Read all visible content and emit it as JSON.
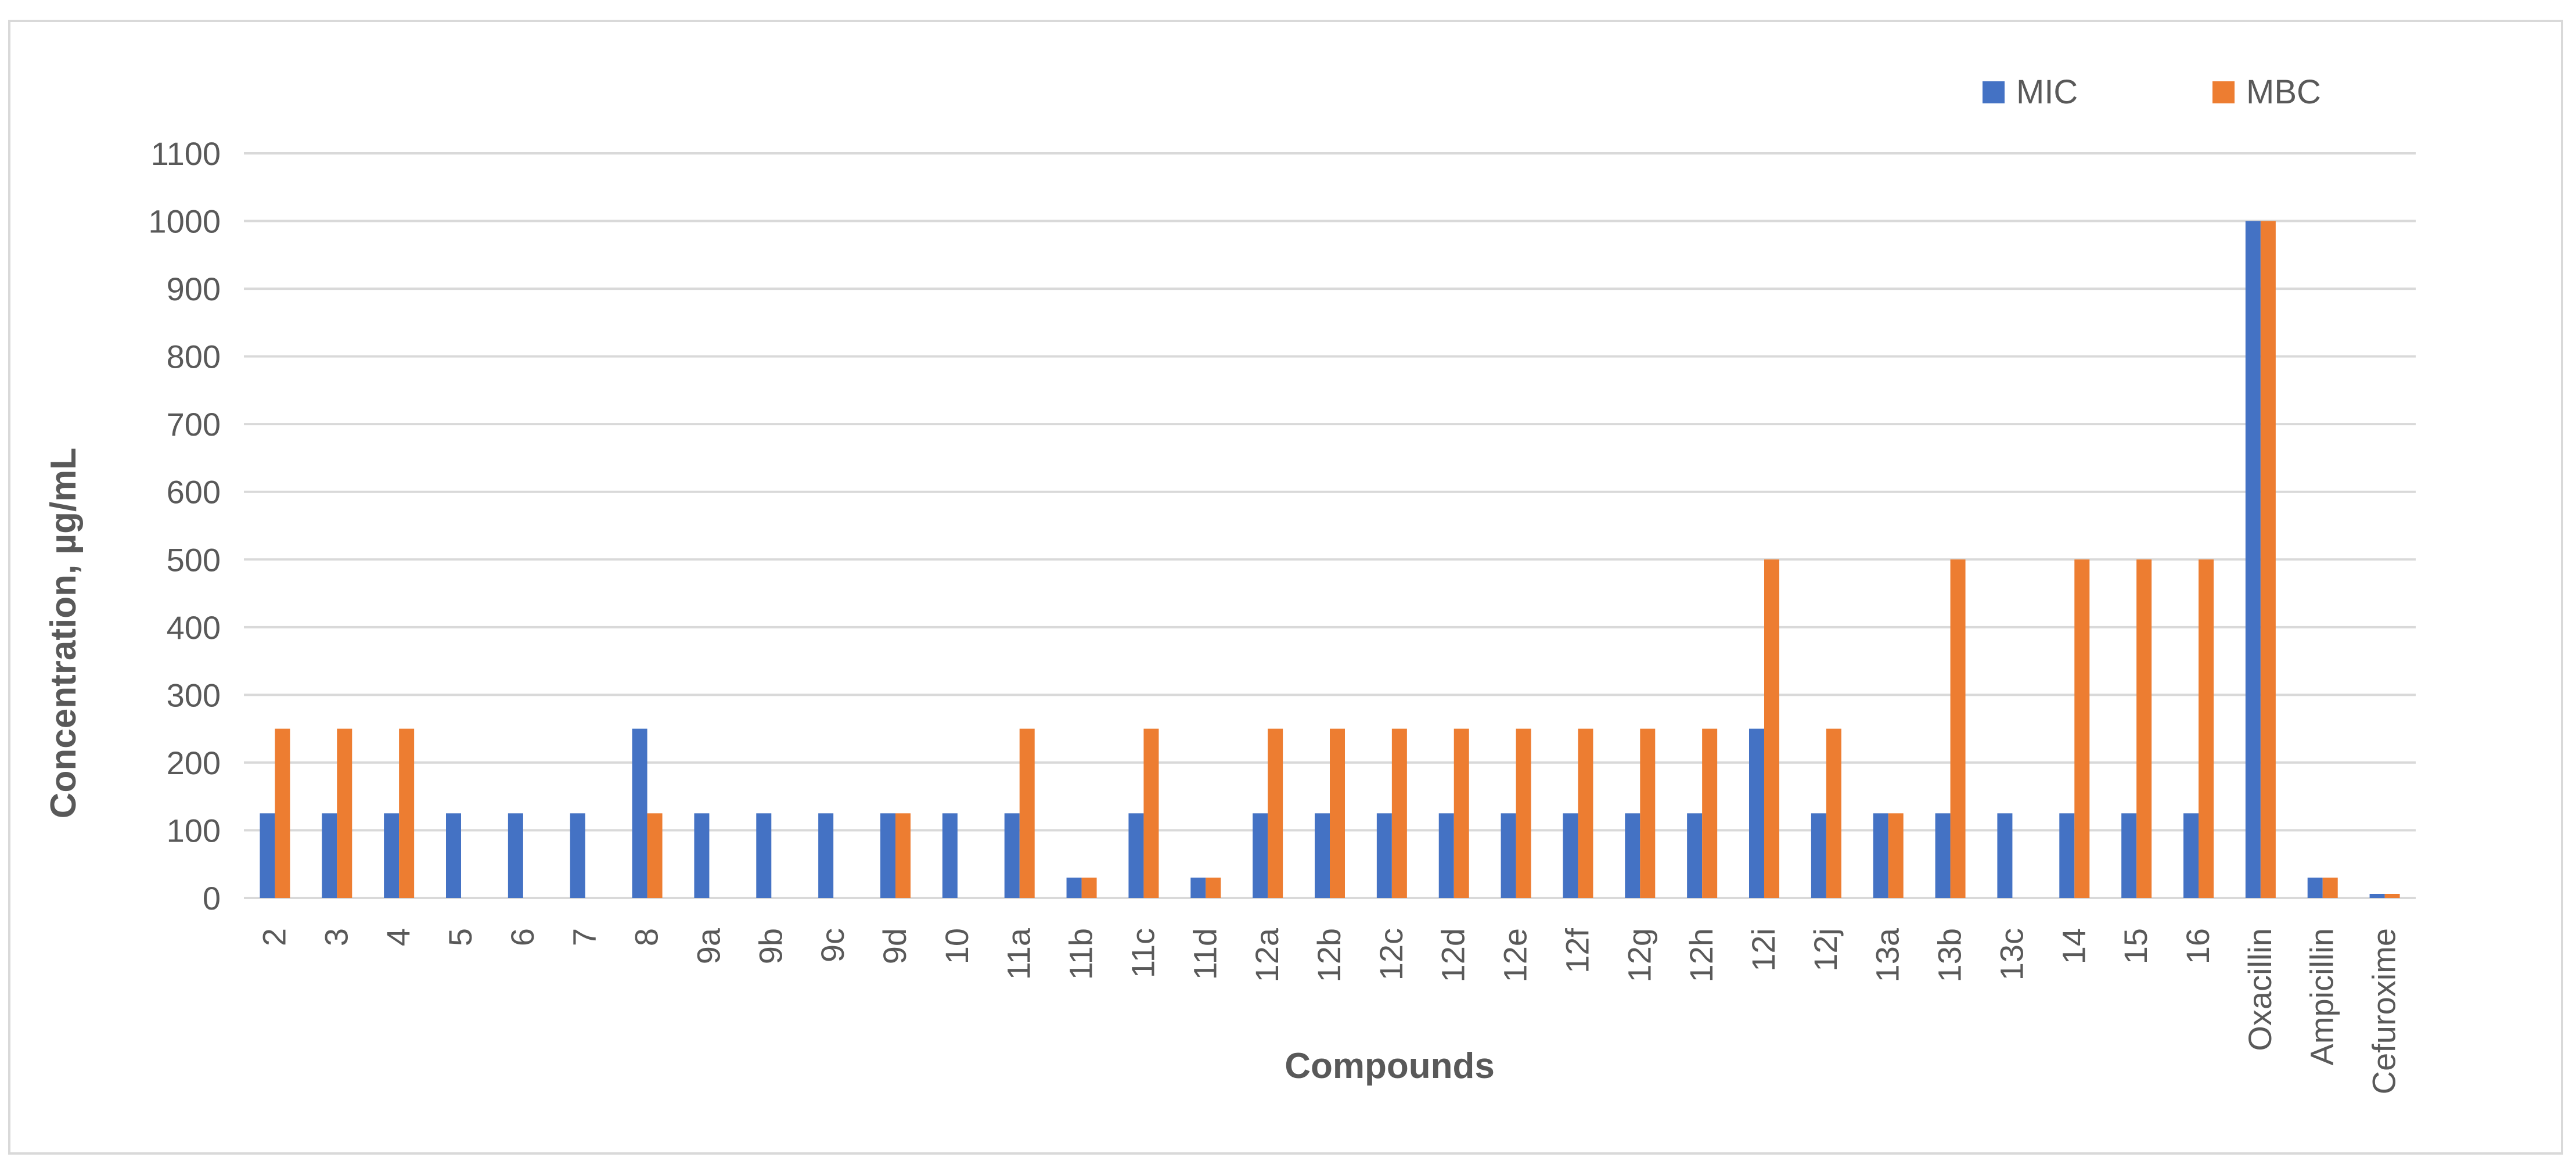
{
  "chart_data": {
    "type": "bar",
    "title": "",
    "xlabel": "Compounds",
    "ylabel": "Concentration, µg/mL",
    "ylim": [
      0,
      1100
    ],
    "yticks": [
      0,
      100,
      200,
      300,
      400,
      500,
      600,
      700,
      800,
      900,
      1000,
      1100
    ],
    "grid": true,
    "legend_position": "top-right",
    "categories": [
      "2",
      "3",
      "4",
      "5",
      "6",
      "7",
      "8",
      "9a",
      "9b",
      "9c",
      "9d",
      "10",
      "11a",
      "11b",
      "11c",
      "11d",
      "12a",
      "12b",
      "12c",
      "12d",
      "12e",
      "12f",
      "12g",
      "12h",
      "12i",
      "12j",
      "13a",
      "13b",
      "13c",
      "14",
      "15",
      "16",
      "Oxacillin",
      "Ampicillin",
      "Cefuroxime"
    ],
    "series": [
      {
        "name": "MIC",
        "color": "#4472C4",
        "values": [
          125,
          125,
          125,
          125,
          125,
          125,
          250,
          125,
          125,
          125,
          125,
          125,
          125,
          30,
          125,
          30,
          125,
          125,
          125,
          125,
          125,
          125,
          125,
          125,
          250,
          125,
          125,
          125,
          125,
          125,
          125,
          125,
          1000,
          30,
          6
        ]
      },
      {
        "name": "MBC",
        "color": "#ED7D31",
        "values": [
          250,
          250,
          250,
          0,
          0,
          0,
          125,
          0,
          0,
          0,
          125,
          0,
          250,
          30,
          250,
          30,
          250,
          250,
          250,
          250,
          250,
          250,
          250,
          250,
          500,
          250,
          125,
          500,
          0,
          500,
          500,
          500,
          1000,
          30,
          6
        ]
      }
    ]
  }
}
